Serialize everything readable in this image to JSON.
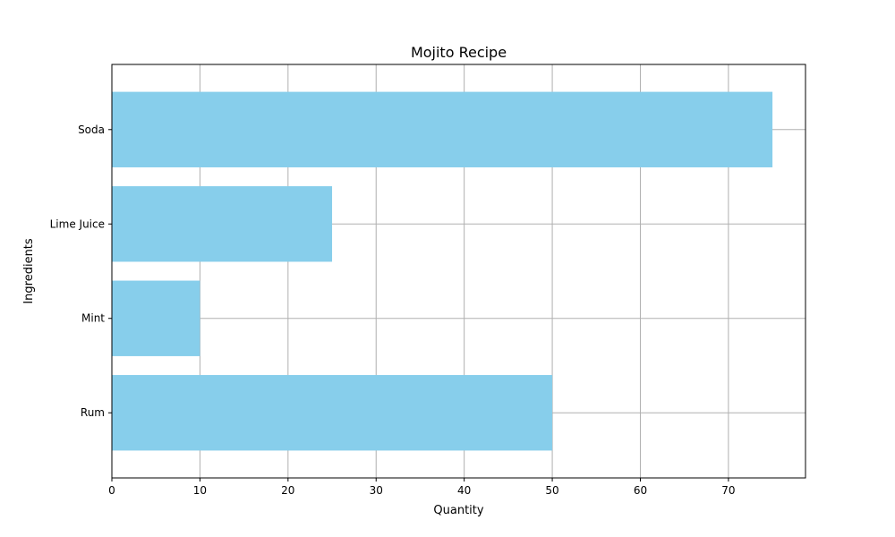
{
  "chart_data": {
    "type": "bar",
    "orientation": "horizontal",
    "title": "Mojito Recipe",
    "xlabel": "Quantity",
    "ylabel": "Ingredients",
    "categories": [
      "Rum",
      "Mint",
      "Lime Juice",
      "Soda"
    ],
    "values": [
      50,
      10,
      25,
      75
    ],
    "xlim": [
      0,
      78.75
    ],
    "xticks": [
      0,
      10,
      20,
      30,
      40,
      50,
      60,
      70
    ],
    "grid": true,
    "bar_color": "#87ceeb",
    "grid_color": "#b0b0b0"
  }
}
